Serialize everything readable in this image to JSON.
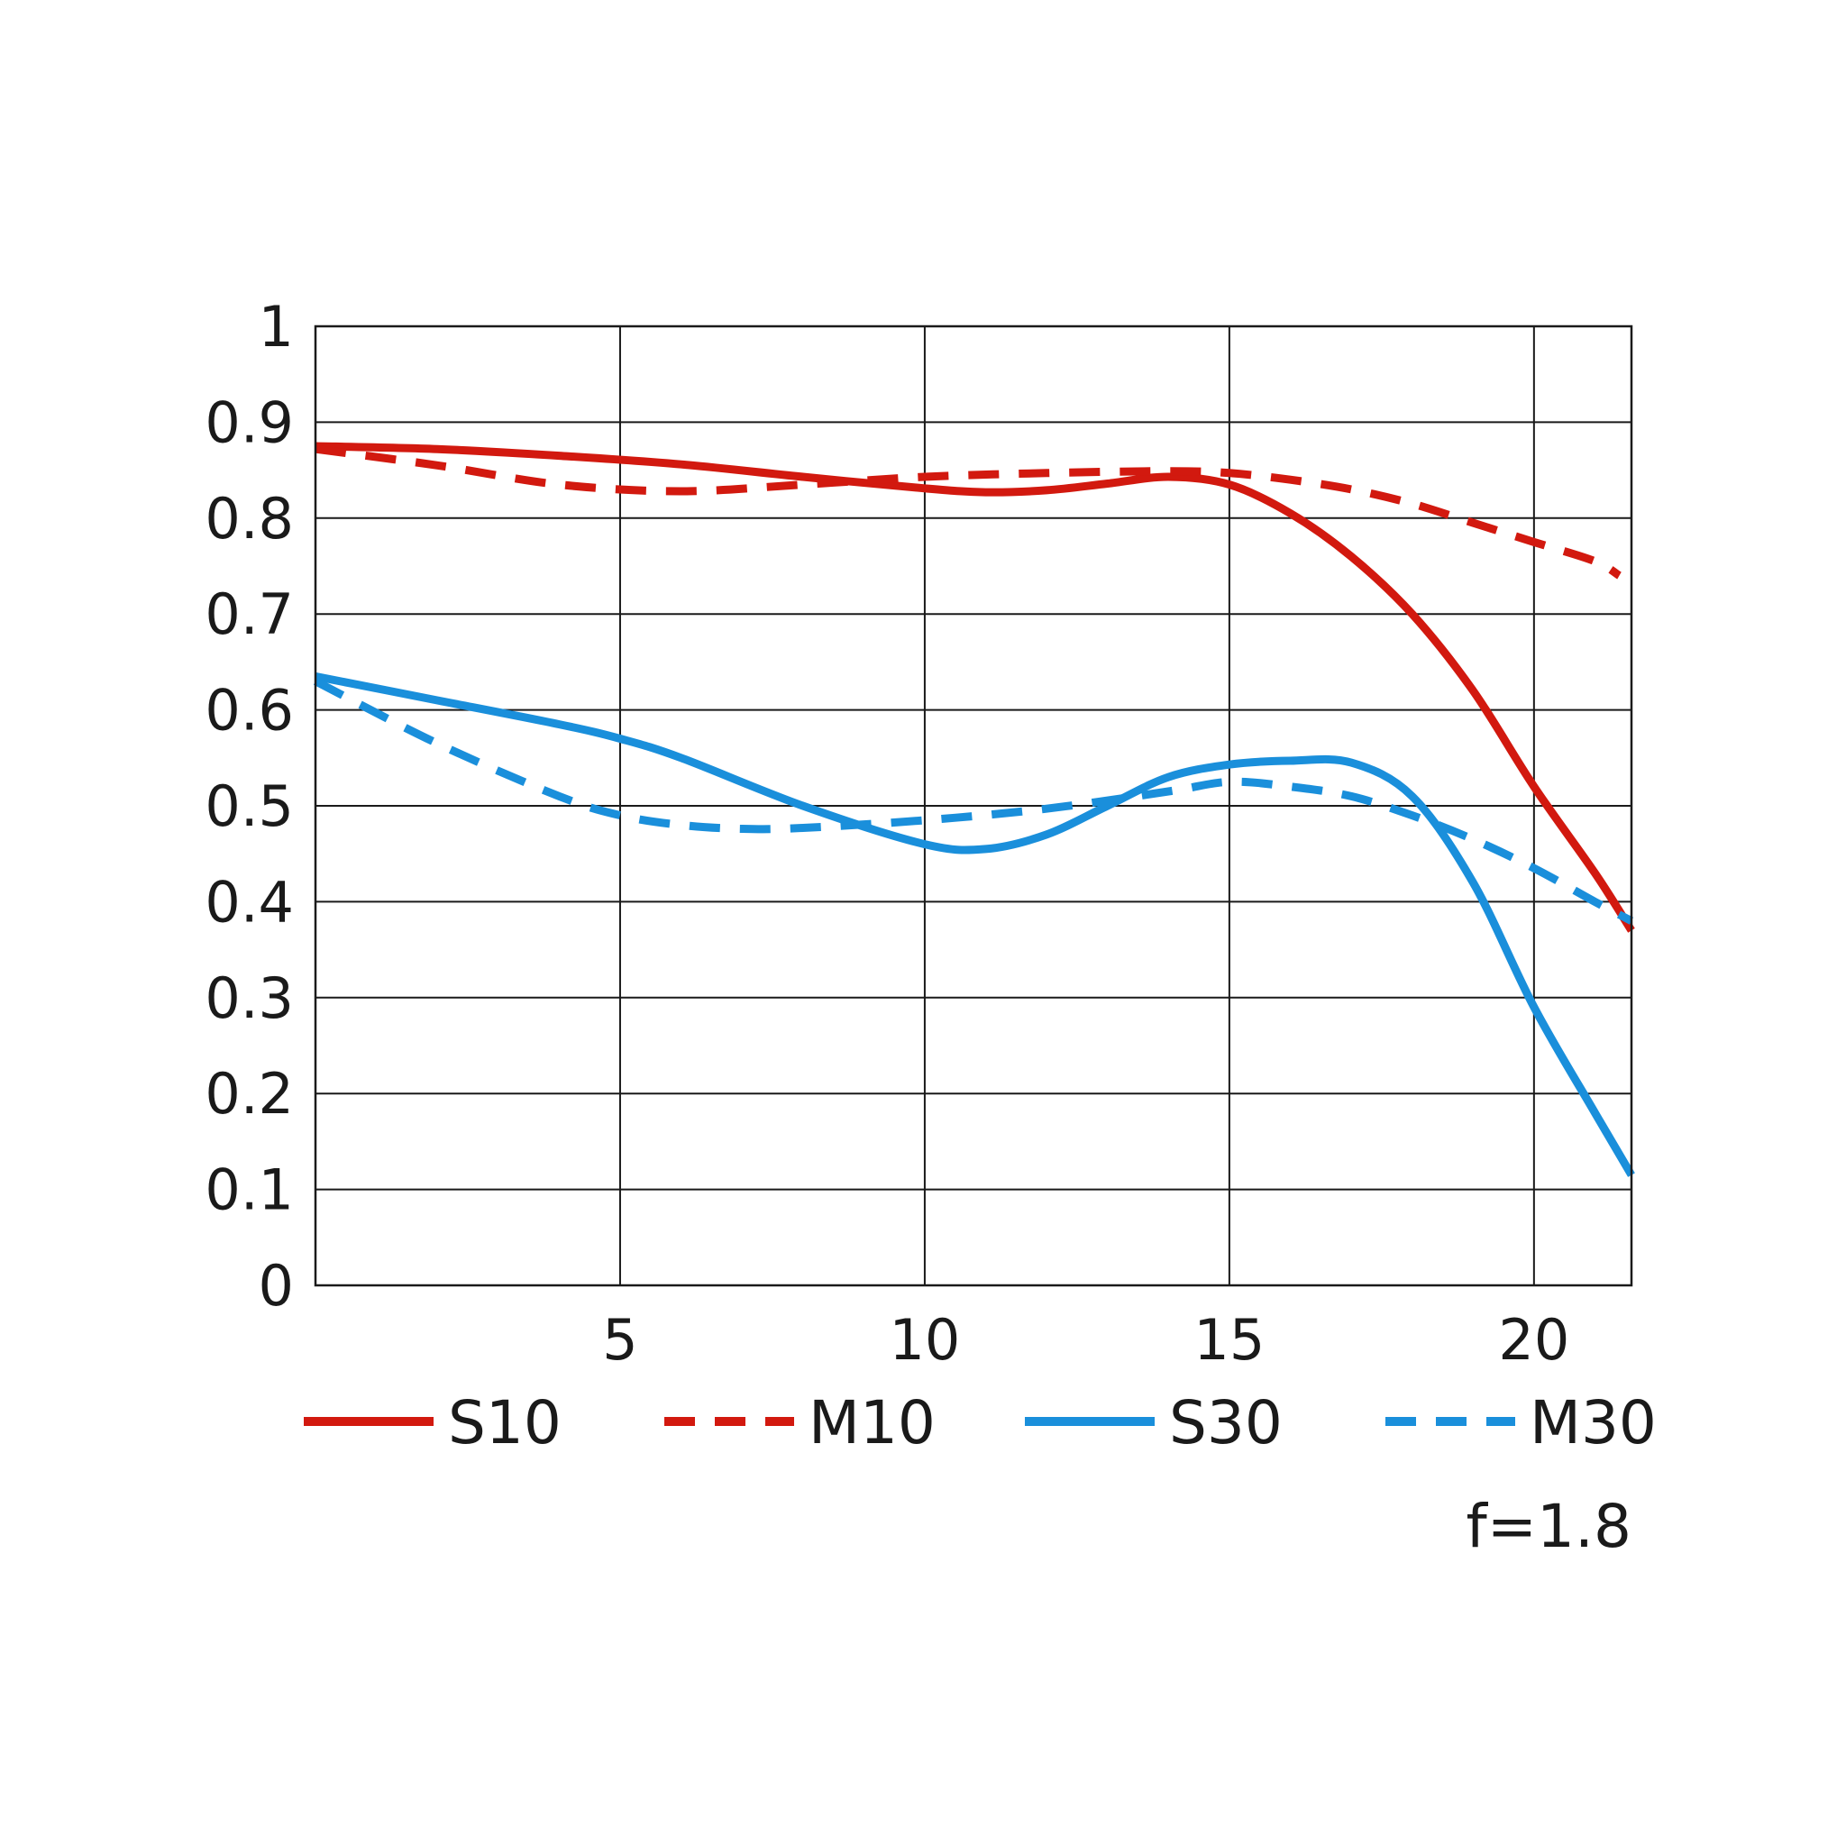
{
  "chart_data": {
    "type": "line",
    "title": "",
    "xlabel": "",
    "ylabel": "",
    "xlim": [
      0,
      21.6
    ],
    "ylim": [
      0,
      1
    ],
    "x_ticks": [
      5,
      10,
      15,
      20
    ],
    "x_tick_labels": [
      "5",
      "10",
      "15",
      "20"
    ],
    "y_ticks": [
      0,
      0.1,
      0.2,
      0.3,
      0.4,
      0.5,
      0.6,
      0.7,
      0.8,
      0.9,
      1
    ],
    "y_tick_labels": [
      "0",
      "0.1",
      "0.2",
      "0.3",
      "0.4",
      "0.5",
      "0.6",
      "0.7",
      "0.8",
      "0.9",
      "1"
    ],
    "grid": true,
    "legend_position": "bottom",
    "note": "f=1.8",
    "series": [
      {
        "name": "S10",
        "color": "#d2190f",
        "dashed": false,
        "x": [
          0,
          2,
          4,
          6,
          8,
          10,
          11,
          12,
          13,
          14,
          15,
          16,
          17,
          18,
          19,
          20,
          21,
          21.6
        ],
        "y": [
          0.875,
          0.872,
          0.865,
          0.856,
          0.843,
          0.831,
          0.827,
          0.829,
          0.836,
          0.843,
          0.835,
          0.805,
          0.76,
          0.7,
          0.62,
          0.52,
          0.43,
          0.37
        ]
      },
      {
        "name": "M10",
        "color": "#d2190f",
        "dashed": true,
        "x": [
          0,
          2,
          4,
          6,
          8,
          10,
          12,
          14,
          15,
          16,
          17,
          18,
          19,
          20,
          21,
          21.4
        ],
        "y": [
          0.872,
          0.855,
          0.835,
          0.828,
          0.835,
          0.843,
          0.847,
          0.849,
          0.847,
          0.84,
          0.83,
          0.815,
          0.795,
          0.775,
          0.755,
          0.74
        ]
      },
      {
        "name": "S30",
        "color": "#1a8fdb",
        "dashed": false,
        "x": [
          0,
          2,
          4,
          5,
          6,
          8,
          10,
          11,
          12,
          13,
          14,
          15,
          16,
          17,
          18,
          19,
          20,
          21,
          21.6
        ],
        "y": [
          0.635,
          0.61,
          0.585,
          0.57,
          0.55,
          0.5,
          0.46,
          0.455,
          0.47,
          0.5,
          0.53,
          0.543,
          0.547,
          0.545,
          0.51,
          0.42,
          0.29,
          0.18,
          0.115
        ]
      },
      {
        "name": "M30",
        "color": "#1a8fdb",
        "dashed": true,
        "x": [
          0,
          2,
          4,
          5,
          6,
          7,
          8,
          10,
          12,
          14,
          15,
          16,
          17,
          18,
          19,
          20,
          21,
          21.6
        ],
        "y": [
          0.63,
          0.565,
          0.51,
          0.49,
          0.48,
          0.476,
          0.477,
          0.485,
          0.497,
          0.515,
          0.525,
          0.52,
          0.51,
          0.49,
          0.465,
          0.435,
          0.4,
          0.38
        ]
      }
    ]
  }
}
